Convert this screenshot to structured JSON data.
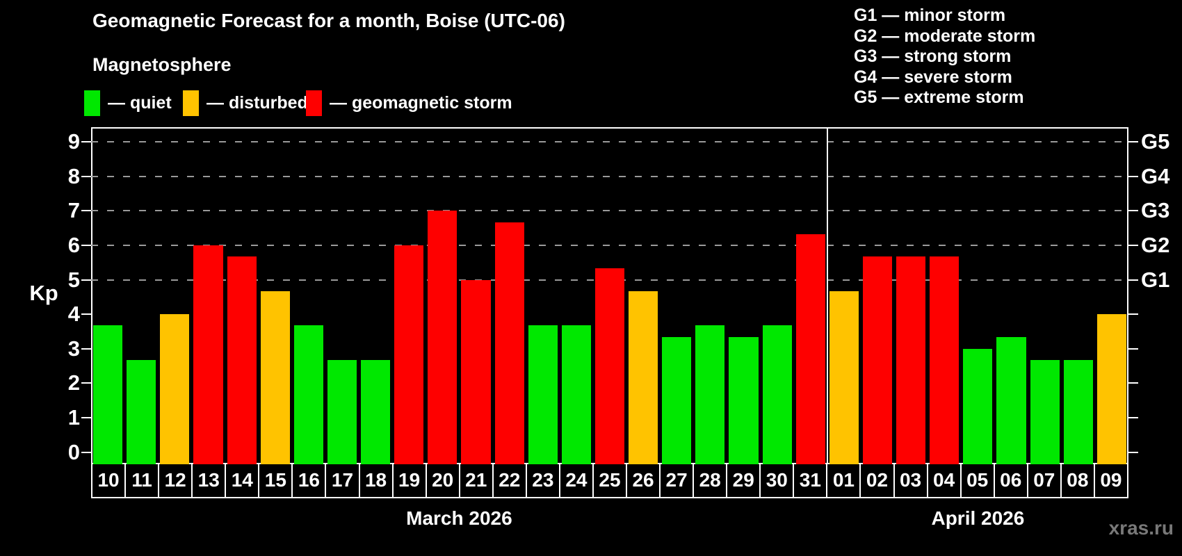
{
  "title": "Geomagnetic Forecast for a month, Boise (UTC-06)",
  "subtitle": "Magnetosphere",
  "legend": {
    "items": [
      {
        "name": "quiet",
        "label": "— quiet",
        "color": "#00e800"
      },
      {
        "name": "disturbed",
        "label": "— disturbed",
        "color": "#ffc300"
      },
      {
        "name": "storm",
        "label": "— geomagnetic storm",
        "color": "#fe0000"
      }
    ]
  },
  "g_scale": {
    "items": [
      {
        "text": "G1 — minor storm"
      },
      {
        "text": "G2 — moderate storm"
      },
      {
        "text": "G3 — strong storm"
      },
      {
        "text": "G4 — severe storm"
      },
      {
        "text": "G5 — extreme storm"
      }
    ]
  },
  "watermark": "xras.ru",
  "chart_data": {
    "type": "bar",
    "title": "Geomagnetic Forecast for a month, Boise (UTC-06)",
    "subtitle": "Magnetosphere",
    "ylabel": "Kp",
    "ylim": [
      0,
      9
    ],
    "yticks": [
      0,
      1,
      2,
      3,
      4,
      5,
      6,
      7,
      8,
      9
    ],
    "gridlines_at": [
      5,
      6,
      7,
      8,
      9
    ],
    "grid": "dashed-horizontal-above-Kp5-only",
    "legend_position": "top-left",
    "right_axis_labels": [
      {
        "value": 9,
        "label": "G5"
      },
      {
        "value": 8,
        "label": "G4"
      },
      {
        "value": 7,
        "label": "G3"
      },
      {
        "value": 6,
        "label": "G2"
      },
      {
        "value": 5,
        "label": "G1"
      }
    ],
    "months": [
      {
        "label": "March 2026",
        "days": 22
      },
      {
        "label": "April 2026",
        "days": 9
      }
    ],
    "colors": {
      "quiet": "#00e800",
      "disturbed": "#ffc300",
      "storm": "#fe0000"
    },
    "bars": [
      {
        "day": "10",
        "value": 3.67,
        "status": "quiet"
      },
      {
        "day": "11",
        "value": 2.67,
        "status": "quiet"
      },
      {
        "day": "12",
        "value": 4.0,
        "status": "disturbed"
      },
      {
        "day": "13",
        "value": 6.0,
        "status": "storm"
      },
      {
        "day": "14",
        "value": 5.67,
        "status": "storm"
      },
      {
        "day": "15",
        "value": 4.67,
        "status": "disturbed"
      },
      {
        "day": "16",
        "value": 3.67,
        "status": "quiet"
      },
      {
        "day": "17",
        "value": 2.67,
        "status": "quiet"
      },
      {
        "day": "18",
        "value": 2.67,
        "status": "quiet"
      },
      {
        "day": "19",
        "value": 6.0,
        "status": "storm"
      },
      {
        "day": "20",
        "value": 7.0,
        "status": "storm"
      },
      {
        "day": "21",
        "value": 5.0,
        "status": "storm"
      },
      {
        "day": "22",
        "value": 6.67,
        "status": "storm"
      },
      {
        "day": "23",
        "value": 3.67,
        "status": "quiet"
      },
      {
        "day": "24",
        "value": 3.67,
        "status": "quiet"
      },
      {
        "day": "25",
        "value": 5.33,
        "status": "storm"
      },
      {
        "day": "26",
        "value": 4.67,
        "status": "disturbed"
      },
      {
        "day": "27",
        "value": 3.33,
        "status": "quiet"
      },
      {
        "day": "28",
        "value": 3.67,
        "status": "quiet"
      },
      {
        "day": "29",
        "value": 3.33,
        "status": "quiet"
      },
      {
        "day": "30",
        "value": 3.67,
        "status": "quiet"
      },
      {
        "day": "31",
        "value": 6.33,
        "status": "storm"
      },
      {
        "day": "01",
        "value": 4.67,
        "status": "disturbed"
      },
      {
        "day": "02",
        "value": 5.67,
        "status": "storm"
      },
      {
        "day": "03",
        "value": 5.67,
        "status": "storm"
      },
      {
        "day": "04",
        "value": 5.67,
        "status": "storm"
      },
      {
        "day": "05",
        "value": 3.0,
        "status": "quiet"
      },
      {
        "day": "06",
        "value": 3.33,
        "status": "quiet"
      },
      {
        "day": "07",
        "value": 2.67,
        "status": "quiet"
      },
      {
        "day": "08",
        "value": 2.67,
        "status": "quiet"
      },
      {
        "day": "09",
        "value": 4.0,
        "status": "disturbed"
      }
    ]
  }
}
